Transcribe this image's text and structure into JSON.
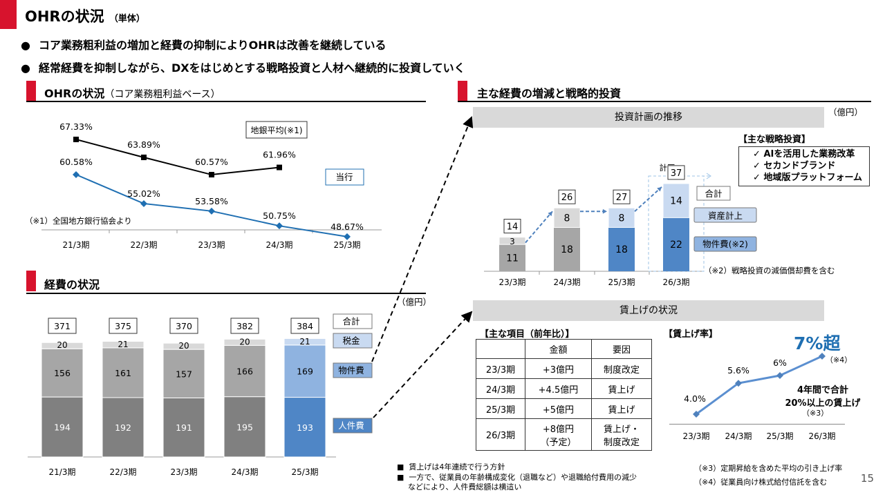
{
  "header": {
    "title": "OHRの状況",
    "title_sub": "（単体）",
    "bullet_glyph": "●",
    "bullets": [
      "コア業務粗利益の増加と経費の抑制によりOHRは改善を継続している",
      "経常経費を抑制しながら、DXをはじめとする戦略投資と人材へ継続的に投資していく"
    ]
  },
  "ohr_section": {
    "title": "OHRの状況",
    "subtitle": "（コア業務粗利益ベース）"
  },
  "expense_section": {
    "title": "経費の状況",
    "unit": "（億円）"
  },
  "right_section": {
    "title": "主な経費の増減と戦略的投資"
  },
  "invest_section": {
    "header": "投資計画の推移",
    "unit": "（億円）",
    "plan_label": "計画",
    "note": "（※2）戦略投資の減価償却費を含む",
    "strategy_title": "【主な戦略投資】",
    "strategy_items": [
      "AIを活用した業務改革",
      "セカンドブランド",
      "地域版プラットフォーム"
    ],
    "check_glyph": "✓"
  },
  "wage_section": {
    "header": "賃上げの状況",
    "table_title": "【主な項目（前年比）】",
    "col_amount": "金額",
    "col_reason": "要因",
    "rows": [
      {
        "period": "23/3期",
        "amount": "+3億円",
        "reason": "制度改定"
      },
      {
        "period": "24/3期",
        "amount": "+4.5億円",
        "reason": "賃上げ"
      },
      {
        "period": "25/3期",
        "amount": "+5億円",
        "reason": "賃上げ"
      },
      {
        "period": "26/3期",
        "amount": "+8億円",
        "amount2": "（予定）",
        "reason": "賃上げ・",
        "reason2": "制度改定"
      }
    ],
    "rate_title": "【賃上げ率】",
    "highlight": "7%超",
    "highlight_note": "（※4）",
    "callout1": "4年間で合計",
    "callout2": "20%以上の賃上げ",
    "callout_note": "（※3）",
    "note3": "（※3）定期昇給を含めた平均の引き上げ率",
    "note4": "（※4）従業員向け株式給付信託を含む",
    "bullet_glyph": "■",
    "bullet1": "賃上げは4年連続で行う方針",
    "bullet2a": "一方で、従業員の年齢構成変化（退職など）や退職給付費用の減少",
    "bullet2b": "などにより、人件費総額は横這い"
  },
  "page_number": "15",
  "colors": {
    "accent_red": "#d7132d",
    "ohr_regional": "#000000",
    "ohr_bank": "#1f6fb2",
    "personnel_past": "#808080",
    "property_past": "#a6a6a6",
    "tax_past": "#d9d9d9",
    "personnel_current": "#4f86c6",
    "property_current": "#8fb3e0",
    "tax_current": "#c9daf1"
  },
  "chart_data": [
    {
      "type": "line",
      "categories": [
        "21/3期",
        "22/3期",
        "23/3期",
        "24/3期",
        "25/3期"
      ],
      "series": [
        {
          "name": "地銀平均(※1)",
          "values": [
            67.33,
            63.89,
            60.57,
            61.96,
            null
          ],
          "labels": [
            "67.33%",
            "63.89%",
            "60.57%",
            "61.96%",
            ""
          ]
        },
        {
          "name": "当行",
          "values": [
            60.58,
            55.02,
            53.58,
            50.75,
            48.67
          ],
          "labels": [
            "60.58%",
            "55.02%",
            "53.58%",
            "50.75%",
            "48.67%"
          ]
        }
      ],
      "ylim": [
        45,
        70
      ],
      "note": "（※1）全国地方銀行協会より",
      "legend": "right"
    },
    {
      "type": "bar",
      "stacked": true,
      "categories": [
        "21/3期",
        "22/3期",
        "23/3期",
        "24/3期",
        "25/3期"
      ],
      "series": [
        {
          "name": "人件費",
          "values": [
            194,
            192,
            191,
            195,
            193
          ]
        },
        {
          "name": "物件費",
          "values": [
            156,
            161,
            157,
            166,
            169
          ]
        },
        {
          "name": "税金",
          "values": [
            20,
            21,
            20,
            20,
            21
          ]
        }
      ],
      "totals": [
        371,
        375,
        370,
        382,
        384
      ],
      "total_label": "合計",
      "ylim": [
        0,
        384
      ],
      "legend": "right"
    },
    {
      "type": "bar",
      "stacked": true,
      "categories": [
        "23/3期",
        "24/3期",
        "25/3期",
        "26/3期"
      ],
      "series": [
        {
          "name": "物件費(※2)",
          "values": [
            11,
            18,
            18,
            22
          ]
        },
        {
          "name": "資産計上",
          "values": [
            3,
            8,
            8,
            14
          ]
        }
      ],
      "totals": [
        14,
        26,
        27,
        37
      ],
      "total_label": "合計",
      "ylim": [
        0,
        37
      ],
      "legend": "right"
    },
    {
      "type": "line",
      "categories": [
        "23/3期",
        "24/3期",
        "25/3期",
        "26/3期"
      ],
      "series": [
        {
          "values": [
            4.0,
            5.6,
            6,
            7
          ],
          "labels": [
            "4.0%",
            "5.6%",
            "6%",
            ""
          ]
        }
      ],
      "ylim": [
        3.4,
        7.3
      ],
      "legend": "none"
    }
  ]
}
